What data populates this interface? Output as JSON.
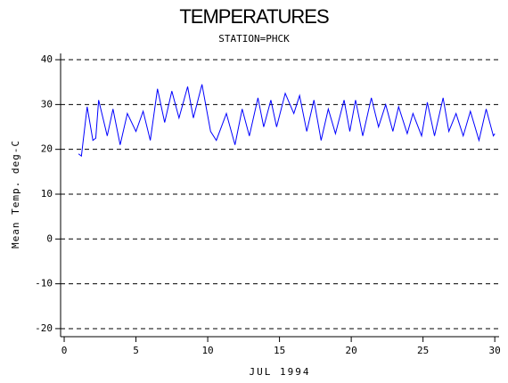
{
  "chart_data": {
    "type": "line",
    "title": "TEMPERATURES",
    "subtitle": "STATION=PHCK",
    "x_label": "JUL 1994",
    "y_label": "Mean Temp. deg-C",
    "xlim": [
      -0.25,
      30.3
    ],
    "xticks": [
      0,
      5,
      10,
      15,
      20,
      25,
      30
    ],
    "ylim": [
      -21.8,
      41.4
    ],
    "yticks": [
      -20,
      -10,
      0,
      10,
      20,
      30,
      40
    ],
    "grid": true,
    "grid_style": "dashed",
    "series": [
      {
        "name": "Mean Temp. deg-C",
        "color": "#0000ff",
        "x": [
          1.0,
          1.2,
          1.6,
          2.0,
          2.2,
          2.4,
          3.0,
          3.4,
          3.9,
          4.4,
          5.0,
          5.5,
          6.0,
          6.5,
          7.0,
          7.5,
          8.0,
          8.6,
          9.0,
          9.6,
          10.2,
          10.6,
          11.3,
          11.9,
          12.4,
          12.9,
          13.5,
          13.9,
          14.4,
          14.8,
          15.4,
          16.0,
          16.4,
          16.9,
          17.4,
          17.9,
          18.4,
          18.9,
          19.5,
          19.9,
          20.3,
          20.8,
          21.4,
          21.9,
          22.4,
          22.9,
          23.3,
          23.9,
          24.3,
          24.9,
          25.3,
          25.8,
          26.4,
          26.8,
          27.3,
          27.8,
          28.3,
          28.9,
          29.4,
          29.9,
          30.0
        ],
        "values": [
          19,
          18.5,
          29.5,
          22,
          22.5,
          31,
          23,
          29,
          21,
          28,
          24,
          28.5,
          22,
          33.5,
          26,
          33,
          27,
          34,
          27,
          34.5,
          24,
          22,
          28,
          21,
          29,
          23,
          31.5,
          25,
          31,
          25,
          32.5,
          28,
          32,
          24,
          31,
          22,
          29,
          23.5,
          31,
          24,
          31,
          23,
          31.5,
          25,
          30,
          24,
          29.5,
          23.5,
          28,
          23,
          30.5,
          23,
          31.5,
          24,
          28,
          23,
          28.5,
          22,
          29,
          23,
          23.5
        ]
      }
    ]
  }
}
